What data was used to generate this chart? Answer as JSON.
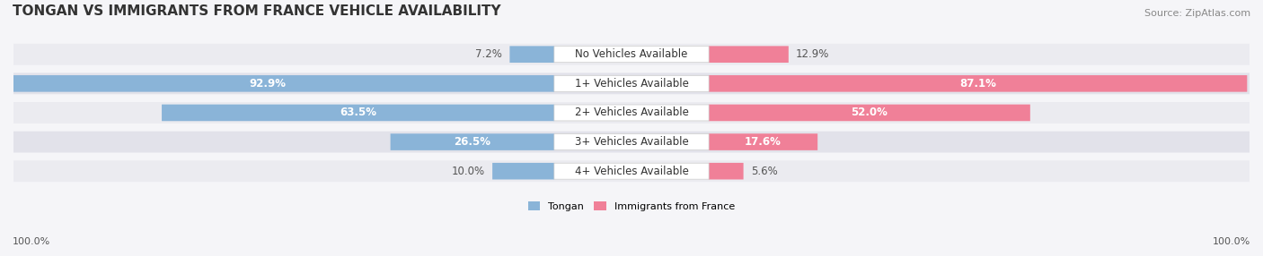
{
  "title": "TONGAN VS IMMIGRANTS FROM FRANCE VEHICLE AVAILABILITY",
  "source": "Source: ZipAtlas.com",
  "categories": [
    "No Vehicles Available",
    "1+ Vehicles Available",
    "2+ Vehicles Available",
    "3+ Vehicles Available",
    "4+ Vehicles Available"
  ],
  "tongan_values": [
    7.2,
    92.9,
    63.5,
    26.5,
    10.0
  ],
  "france_values": [
    12.9,
    87.1,
    52.0,
    17.6,
    5.6
  ],
  "tongan_color": "#8ab4d8",
  "france_color": "#f08098",
  "label_color_dark": "#555555",
  "label_color_white": "#ffffff",
  "max_value": 100.0,
  "bar_height": 0.55,
  "title_fontsize": 11,
  "source_fontsize": 8,
  "label_fontsize": 8.5,
  "category_fontsize": 8.5,
  "footer_fontsize": 8,
  "bg_color": "#f5f5f8",
  "row_colors": [
    "#ebebf0",
    "#e2e2ea"
  ]
}
